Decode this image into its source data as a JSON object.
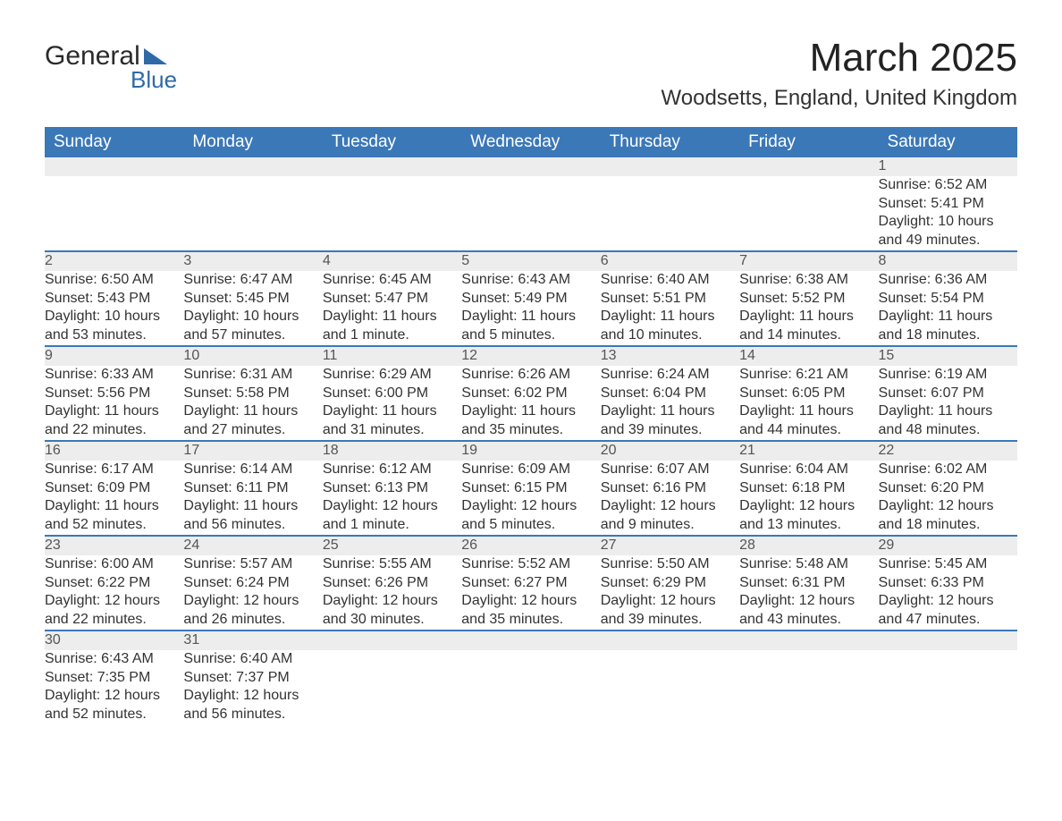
{
  "logo": {
    "line1": "General",
    "line2": "Blue"
  },
  "title": "March 2025",
  "location": "Woodsetts, England, United Kingdom",
  "colors": {
    "header_bg": "#3b78b8",
    "header_text": "#ffffff",
    "daynum_bg": "#ededed",
    "row_border": "#3b78b8",
    "body_text": "#333333",
    "logo_accent": "#2f6aa8"
  },
  "day_headers": [
    "Sunday",
    "Monday",
    "Tuesday",
    "Wednesday",
    "Thursday",
    "Friday",
    "Saturday"
  ],
  "labels": {
    "sunrise": "Sunrise",
    "sunset": "Sunset",
    "daylight": "Daylight"
  },
  "weeks": [
    [
      null,
      null,
      null,
      null,
      null,
      null,
      {
        "n": "1",
        "sunrise": "6:52 AM",
        "sunset": "5:41 PM",
        "daylight": "10 hours and 49 minutes."
      }
    ],
    [
      {
        "n": "2",
        "sunrise": "6:50 AM",
        "sunset": "5:43 PM",
        "daylight": "10 hours and 53 minutes."
      },
      {
        "n": "3",
        "sunrise": "6:47 AM",
        "sunset": "5:45 PM",
        "daylight": "10 hours and 57 minutes."
      },
      {
        "n": "4",
        "sunrise": "6:45 AM",
        "sunset": "5:47 PM",
        "daylight": "11 hours and 1 minute."
      },
      {
        "n": "5",
        "sunrise": "6:43 AM",
        "sunset": "5:49 PM",
        "daylight": "11 hours and 5 minutes."
      },
      {
        "n": "6",
        "sunrise": "6:40 AM",
        "sunset": "5:51 PM",
        "daylight": "11 hours and 10 minutes."
      },
      {
        "n": "7",
        "sunrise": "6:38 AM",
        "sunset": "5:52 PM",
        "daylight": "11 hours and 14 minutes."
      },
      {
        "n": "8",
        "sunrise": "6:36 AM",
        "sunset": "5:54 PM",
        "daylight": "11 hours and 18 minutes."
      }
    ],
    [
      {
        "n": "9",
        "sunrise": "6:33 AM",
        "sunset": "5:56 PM",
        "daylight": "11 hours and 22 minutes."
      },
      {
        "n": "10",
        "sunrise": "6:31 AM",
        "sunset": "5:58 PM",
        "daylight": "11 hours and 27 minutes."
      },
      {
        "n": "11",
        "sunrise": "6:29 AM",
        "sunset": "6:00 PM",
        "daylight": "11 hours and 31 minutes."
      },
      {
        "n": "12",
        "sunrise": "6:26 AM",
        "sunset": "6:02 PM",
        "daylight": "11 hours and 35 minutes."
      },
      {
        "n": "13",
        "sunrise": "6:24 AM",
        "sunset": "6:04 PM",
        "daylight": "11 hours and 39 minutes."
      },
      {
        "n": "14",
        "sunrise": "6:21 AM",
        "sunset": "6:05 PM",
        "daylight": "11 hours and 44 minutes."
      },
      {
        "n": "15",
        "sunrise": "6:19 AM",
        "sunset": "6:07 PM",
        "daylight": "11 hours and 48 minutes."
      }
    ],
    [
      {
        "n": "16",
        "sunrise": "6:17 AM",
        "sunset": "6:09 PM",
        "daylight": "11 hours and 52 minutes."
      },
      {
        "n": "17",
        "sunrise": "6:14 AM",
        "sunset": "6:11 PM",
        "daylight": "11 hours and 56 minutes."
      },
      {
        "n": "18",
        "sunrise": "6:12 AM",
        "sunset": "6:13 PM",
        "daylight": "12 hours and 1 minute."
      },
      {
        "n": "19",
        "sunrise": "6:09 AM",
        "sunset": "6:15 PM",
        "daylight": "12 hours and 5 minutes."
      },
      {
        "n": "20",
        "sunrise": "6:07 AM",
        "sunset": "6:16 PM",
        "daylight": "12 hours and 9 minutes."
      },
      {
        "n": "21",
        "sunrise": "6:04 AM",
        "sunset": "6:18 PM",
        "daylight": "12 hours and 13 minutes."
      },
      {
        "n": "22",
        "sunrise": "6:02 AM",
        "sunset": "6:20 PM",
        "daylight": "12 hours and 18 minutes."
      }
    ],
    [
      {
        "n": "23",
        "sunrise": "6:00 AM",
        "sunset": "6:22 PM",
        "daylight": "12 hours and 22 minutes."
      },
      {
        "n": "24",
        "sunrise": "5:57 AM",
        "sunset": "6:24 PM",
        "daylight": "12 hours and 26 minutes."
      },
      {
        "n": "25",
        "sunrise": "5:55 AM",
        "sunset": "6:26 PM",
        "daylight": "12 hours and 30 minutes."
      },
      {
        "n": "26",
        "sunrise": "5:52 AM",
        "sunset": "6:27 PM",
        "daylight": "12 hours and 35 minutes."
      },
      {
        "n": "27",
        "sunrise": "5:50 AM",
        "sunset": "6:29 PM",
        "daylight": "12 hours and 39 minutes."
      },
      {
        "n": "28",
        "sunrise": "5:48 AM",
        "sunset": "6:31 PM",
        "daylight": "12 hours and 43 minutes."
      },
      {
        "n": "29",
        "sunrise": "5:45 AM",
        "sunset": "6:33 PM",
        "daylight": "12 hours and 47 minutes."
      }
    ],
    [
      {
        "n": "30",
        "sunrise": "6:43 AM",
        "sunset": "7:35 PM",
        "daylight": "12 hours and 52 minutes."
      },
      {
        "n": "31",
        "sunrise": "6:40 AM",
        "sunset": "7:37 PM",
        "daylight": "12 hours and 56 minutes."
      },
      null,
      null,
      null,
      null,
      null
    ]
  ]
}
